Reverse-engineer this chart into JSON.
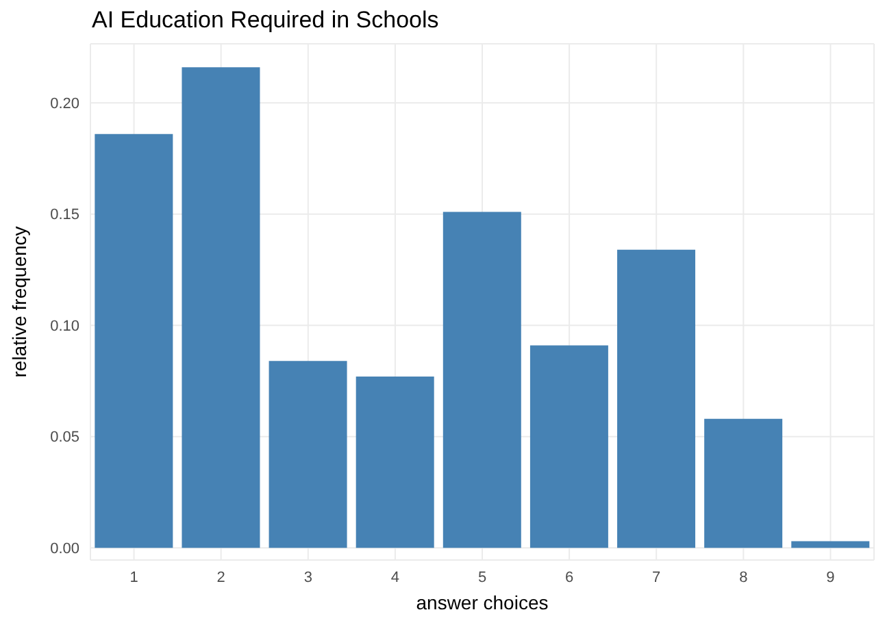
{
  "chart_data": {
    "type": "bar",
    "title": "AI Education Required in Schools",
    "xlabel": "answer choices",
    "ylabel": "relative frequency",
    "categories": [
      "1",
      "2",
      "3",
      "4",
      "5",
      "6",
      "7",
      "8",
      "9"
    ],
    "values": [
      0.186,
      0.216,
      0.084,
      0.077,
      0.151,
      0.091,
      0.134,
      0.058,
      0.003
    ],
    "color": "#4682b4",
    "ylim": [
      -0.0055,
      0.2265
    ],
    "yticks": [
      {
        "value": 0,
        "label": "0.00"
      },
      {
        "value": 0.05,
        "label": "0.05"
      },
      {
        "value": 0.1,
        "label": "0.10"
      },
      {
        "value": 0.15,
        "label": "0.15"
      },
      {
        "value": 0.2,
        "label": "0.20"
      }
    ],
    "grid": true
  }
}
